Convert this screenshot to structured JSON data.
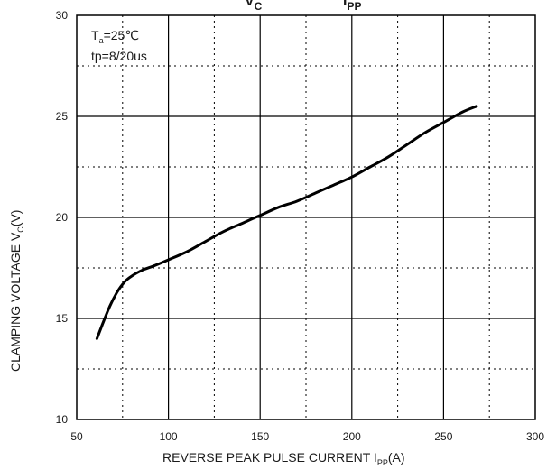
{
  "chart_data": {
    "type": "line",
    "title_fragments": {
      "left": "V",
      "left_sub": "C",
      "right": "I",
      "right_sub": "PP"
    },
    "xlabel": "REVERSE PEAK PULSE CURRENT  I",
    "xlabel_sub": "PP",
    "xlabel_tail": "(A)",
    "ylabel": "CLAMPING VOLTAGE  V",
    "ylabel_sub": "C",
    "ylabel_tail": "(V)",
    "xlim": [
      50,
      300
    ],
    "ylim": [
      10,
      30
    ],
    "x_ticks": [
      "50",
      "100",
      "150",
      "200",
      "250",
      "300"
    ],
    "y_ticks": [
      "10",
      "15",
      "20",
      "25",
      "30"
    ],
    "grid": {
      "major": "solid",
      "minor": "dotted"
    },
    "annotation": {
      "line1_prefix": "T",
      "line1_sub": "a",
      "line1_suffix": "=25℃",
      "line2": "tp=8/20us"
    },
    "series": [
      {
        "x": [
          61,
          64,
          68,
          72,
          76,
          80,
          86,
          92,
          100,
          110,
          120,
          130,
          140,
          150,
          160,
          170,
          180,
          190,
          200,
          210,
          220,
          230,
          240,
          250,
          260,
          268
        ],
        "y": [
          14.0,
          14.7,
          15.6,
          16.3,
          16.8,
          17.1,
          17.4,
          17.6,
          17.9,
          18.3,
          18.8,
          19.3,
          19.7,
          20.1,
          20.5,
          20.8,
          21.2,
          21.6,
          22.0,
          22.5,
          23.0,
          23.6,
          24.2,
          24.7,
          25.2,
          25.5
        ]
      }
    ]
  }
}
